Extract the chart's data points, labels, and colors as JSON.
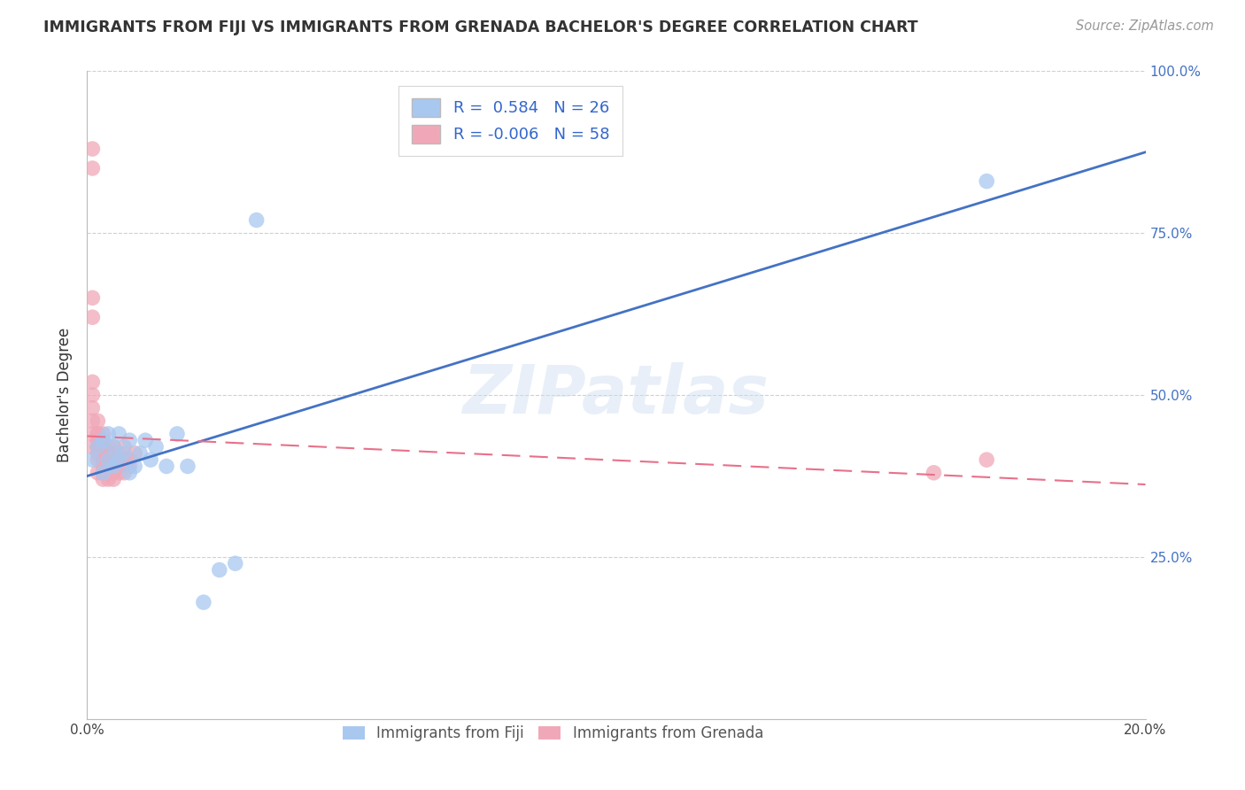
{
  "title": "IMMIGRANTS FROM FIJI VS IMMIGRANTS FROM GRENADA BACHELOR'S DEGREE CORRELATION CHART",
  "source": "Source: ZipAtlas.com",
  "ylabel": "Bachelor's Degree",
  "xlim": [
    0.0,
    0.2
  ],
  "ylim": [
    0.0,
    1.0
  ],
  "fiji_R": 0.584,
  "fiji_N": 26,
  "grenada_R": -0.006,
  "grenada_N": 58,
  "fiji_color": "#a8c8f0",
  "grenada_color": "#f0a8b8",
  "fiji_line_color": "#4472c4",
  "grenada_line_color": "#e8708a",
  "watermark_text": "ZIPatlas",
  "legend_label_fiji": "Immigrants from Fiji",
  "legend_label_grenada": "Immigrants from Grenada",
  "fiji_x": [
    0.001,
    0.002,
    0.003,
    0.003,
    0.004,
    0.004,
    0.005,
    0.005,
    0.006,
    0.006,
    0.007,
    0.008,
    0.008,
    0.009,
    0.01,
    0.011,
    0.012,
    0.013,
    0.015,
    0.017,
    0.019,
    0.022,
    0.025,
    0.028,
    0.032,
    0.17
  ],
  "fiji_y": [
    0.4,
    0.42,
    0.38,
    0.43,
    0.4,
    0.44,
    0.39,
    0.42,
    0.4,
    0.44,
    0.41,
    0.38,
    0.43,
    0.39,
    0.41,
    0.43,
    0.4,
    0.42,
    0.39,
    0.44,
    0.39,
    0.18,
    0.23,
    0.24,
    0.77,
    0.83
  ],
  "grenada_x": [
    0.001,
    0.001,
    0.001,
    0.001,
    0.001,
    0.001,
    0.001,
    0.001,
    0.001,
    0.001,
    0.002,
    0.002,
    0.002,
    0.002,
    0.002,
    0.002,
    0.002,
    0.002,
    0.002,
    0.003,
    0.003,
    0.003,
    0.003,
    0.003,
    0.003,
    0.003,
    0.003,
    0.003,
    0.003,
    0.003,
    0.003,
    0.004,
    0.004,
    0.004,
    0.004,
    0.004,
    0.004,
    0.004,
    0.004,
    0.004,
    0.004,
    0.004,
    0.005,
    0.005,
    0.005,
    0.005,
    0.006,
    0.006,
    0.006,
    0.006,
    0.007,
    0.007,
    0.007,
    0.008,
    0.008,
    0.009,
    0.16,
    0.17
  ],
  "grenada_y": [
    0.85,
    0.88,
    0.62,
    0.65,
    0.5,
    0.52,
    0.46,
    0.48,
    0.44,
    0.42,
    0.44,
    0.46,
    0.42,
    0.44,
    0.42,
    0.4,
    0.38,
    0.41,
    0.43,
    0.4,
    0.42,
    0.38,
    0.43,
    0.41,
    0.39,
    0.37,
    0.4,
    0.42,
    0.38,
    0.4,
    0.44,
    0.38,
    0.4,
    0.42,
    0.39,
    0.41,
    0.38,
    0.37,
    0.4,
    0.39,
    0.41,
    0.38,
    0.4,
    0.42,
    0.38,
    0.37,
    0.39,
    0.41,
    0.38,
    0.4,
    0.4,
    0.38,
    0.42,
    0.39,
    0.4,
    0.41,
    0.38,
    0.4
  ],
  "background_color": "#ffffff",
  "grid_color": "#d0d0d0"
}
